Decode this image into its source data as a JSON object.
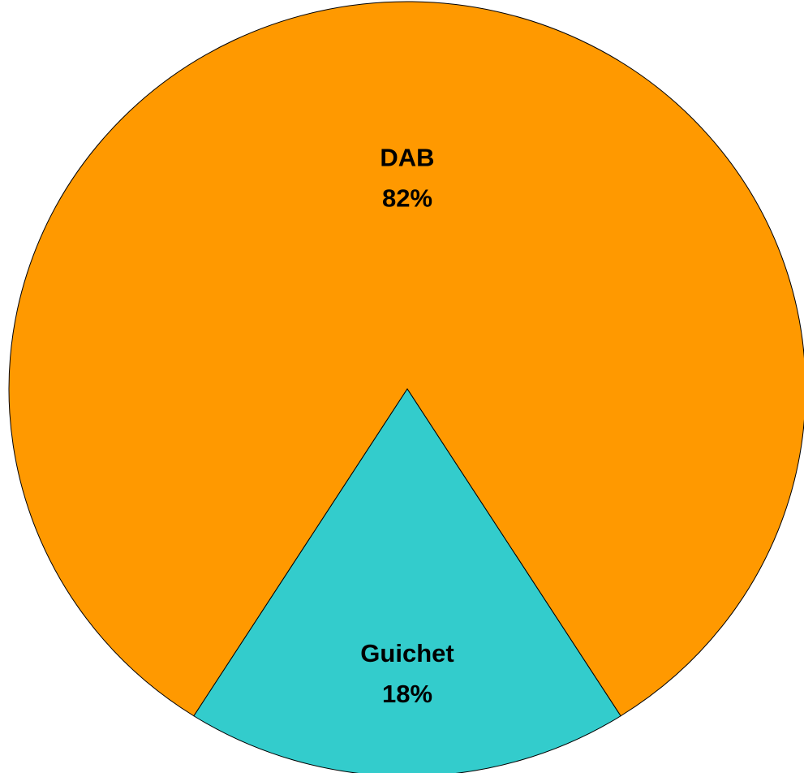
{
  "chart_data": {
    "type": "pie",
    "categories": [
      "DAB",
      "Guichet"
    ],
    "values": [
      82,
      18
    ],
    "value_labels": [
      "82%",
      "18%"
    ],
    "colors": [
      "#ff9900",
      "#33cccc"
    ]
  }
}
